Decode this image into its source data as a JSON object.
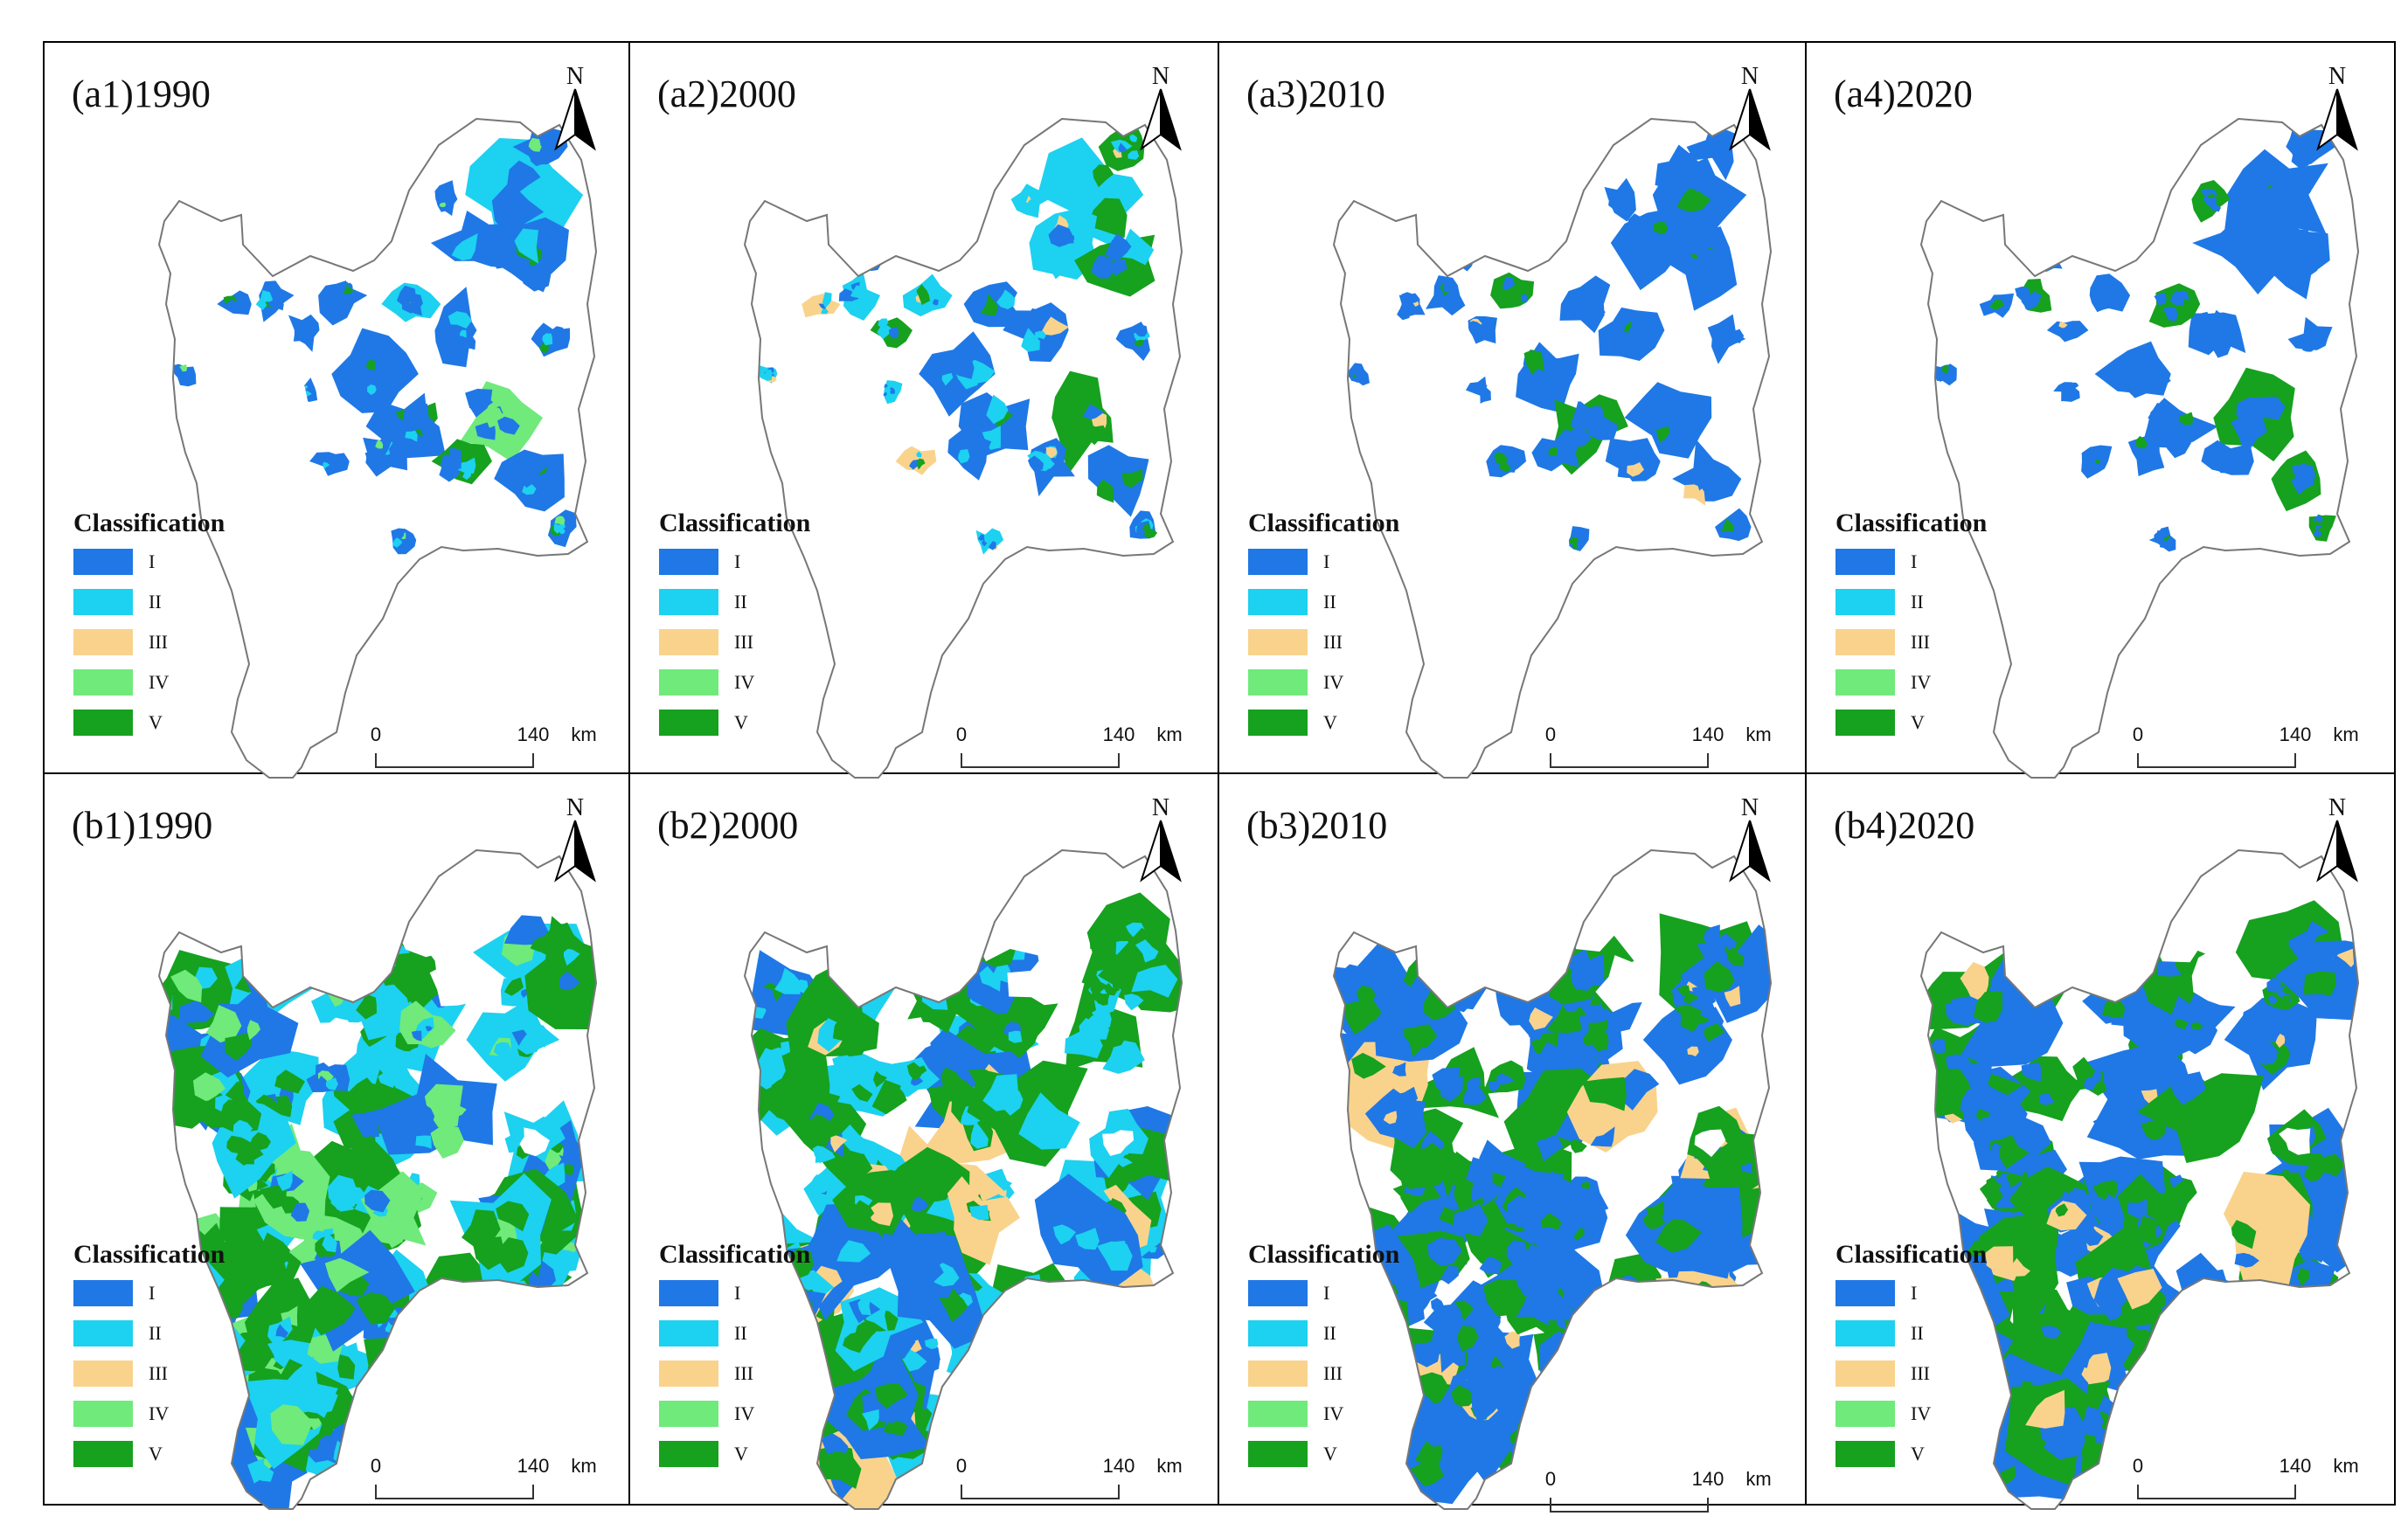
{
  "figure": {
    "colors": {
      "I": "#1f78e6",
      "II": "#1dd1f0",
      "III": "#f9d38c",
      "IV": "#6fea7b",
      "V": "#16a11f"
    },
    "legend": {
      "title": "Classification",
      "items": [
        {
          "key": "I",
          "label": "I",
          "color": "#1f78e6"
        },
        {
          "key": "II",
          "label": "II",
          "color": "#1dd1f0"
        },
        {
          "key": "III",
          "label": "III",
          "color": "#f9d38c"
        },
        {
          "key": "IV",
          "label": "IV",
          "color": "#6fea7b"
        },
        {
          "key": "V",
          "label": "V",
          "color": "#16a11f"
        }
      ]
    },
    "north_label": "N",
    "scale_bar": {
      "start": "0",
      "end": "140",
      "unit": "km"
    },
    "panels": [
      {
        "id": "a1",
        "title": "(a1)1990",
        "dominant": [
          "I",
          "II",
          "V",
          "IV"
        ]
      },
      {
        "id": "a2",
        "title": "(a2)2000",
        "dominant": [
          "II",
          "I",
          "V",
          "III"
        ]
      },
      {
        "id": "a3",
        "title": "(a3)2010",
        "dominant": [
          "I",
          "V",
          "III"
        ]
      },
      {
        "id": "a4",
        "title": "(a4)2020",
        "dominant": [
          "I",
          "V",
          "III"
        ]
      },
      {
        "id": "b1",
        "title": "(b1)1990",
        "dominant": [
          "V",
          "II",
          "I",
          "IV"
        ]
      },
      {
        "id": "b2",
        "title": "(b2)2000",
        "dominant": [
          "V",
          "II",
          "I",
          "III"
        ]
      },
      {
        "id": "b3",
        "title": "(b3)2010",
        "dominant": [
          "I",
          "V",
          "III"
        ]
      },
      {
        "id": "b4",
        "title": "(b4)2020",
        "dominant": [
          "I",
          "V",
          "III"
        ]
      }
    ]
  }
}
